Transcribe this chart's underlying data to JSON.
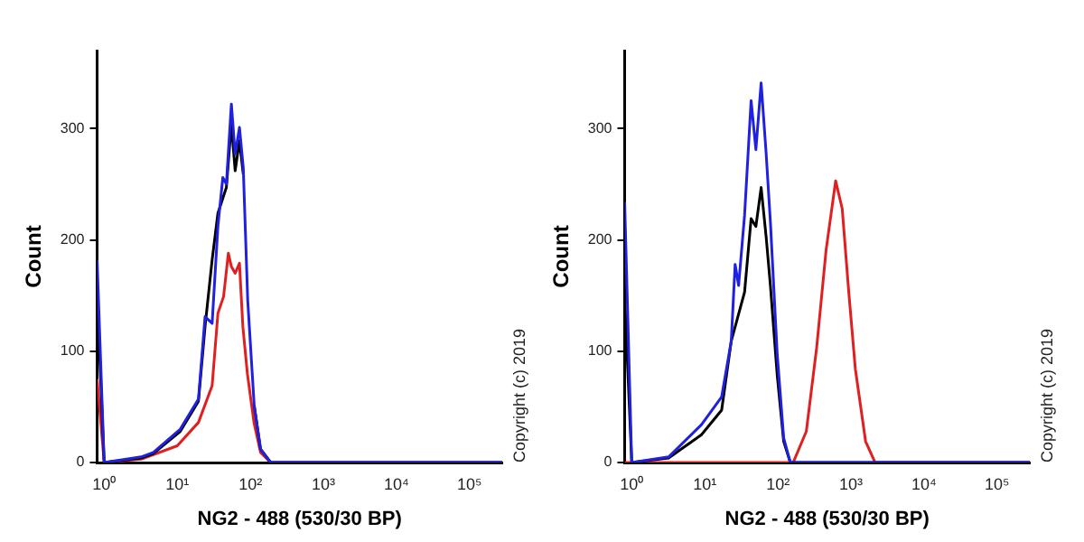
{
  "chart_data": [
    {
      "type": "line",
      "xlabel": "NG2 - 488 (530/30 BP)",
      "ylabel": "Count",
      "log": "x",
      "xlim": [
        0.8,
        280000
      ],
      "xticks": [
        {
          "value": 1,
          "label": "10⁰"
        },
        {
          "value": 10,
          "label": "10¹"
        },
        {
          "value": 100,
          "label": "10²"
        },
        {
          "value": 1000,
          "label": "10³"
        },
        {
          "value": 10000,
          "label": "10⁴"
        },
        {
          "value": 100000,
          "label": "10⁵"
        }
      ],
      "ylim": [
        0,
        370
      ],
      "yticks": [
        0,
        100,
        200,
        300
      ],
      "annotations": [
        "Copyright (c) 2019"
      ],
      "series": [
        {
          "color": "#2020e0",
          "x": [
            0.8,
            1,
            3.2,
            4.7,
            11,
            19.5,
            24,
            30,
            36,
            42,
            47,
            55,
            62,
            71,
            80,
            92,
            113,
            138,
            190,
            280000
          ],
          "values": [
            182,
            0,
            5,
            9,
            30,
            57,
            131,
            125,
            212,
            256,
            250,
            322,
            277,
            301,
            265,
            146,
            51,
            12,
            0,
            0
          ]
        },
        {
          "color": "#000000",
          "x": [
            0.8,
            1,
            3.2,
            4.7,
            11,
            19.5,
            24,
            30,
            36,
            47,
            55,
            62,
            71,
            80,
            92,
            113,
            138,
            190,
            280000
          ],
          "values": [
            150,
            0,
            4,
            8,
            28,
            55,
            122,
            182,
            224,
            247,
            304,
            262,
            289,
            259,
            null,
            51,
            12,
            0,
            0
          ]
        },
        {
          "color": "#e02020",
          "x": [
            0.8,
            1,
            3.2,
            10,
            19.5,
            30,
            36,
            43,
            50,
            55,
            62,
            71,
            79,
            91,
            112,
            138,
            190,
            280000
          ],
          "values": [
            75,
            0,
            3,
            15,
            36,
            69,
            134,
            149,
            188,
            176,
            170,
            179,
            122,
            80,
            36,
            9,
            0,
            0
          ]
        }
      ]
    },
    {
      "type": "line",
      "xlabel": "NG2 - 488 (530/30 BP)",
      "ylabel": "Count",
      "log": "x",
      "xlim": [
        0.8,
        280000
      ],
      "xticks": [
        {
          "value": 1,
          "label": "10⁰"
        },
        {
          "value": 10,
          "label": "10¹"
        },
        {
          "value": 100,
          "label": "10²"
        },
        {
          "value": 1000,
          "label": "10³"
        },
        {
          "value": 10000,
          "label": "10⁴"
        },
        {
          "value": 100000,
          "label": "10⁵"
        }
      ],
      "ylim": [
        0,
        370
      ],
      "yticks": [
        0,
        100,
        200,
        300
      ],
      "annotations": [
        "Copyright (c) 2019"
      ],
      "series": [
        {
          "color": "#2020e0",
          "x": [
            0.8,
            1,
            3.2,
            9,
            17,
            23,
            26,
            29,
            35,
            43,
            50,
            59,
            69,
            79,
            98,
            120,
            148,
            280000
          ],
          "values": [
            234,
            0,
            5,
            34,
            59,
            109,
            178,
            159,
            222,
            325,
            281,
            341,
            278,
            216,
            97,
            22,
            0,
            0
          ]
        },
        {
          "color": "#000000",
          "x": [
            0.8,
            1,
            3.2,
            9,
            17,
            23,
            35,
            43,
            50,
            59,
            69,
            79,
            98,
            120,
            148,
            280000
          ],
          "values": [
            150,
            0,
            4,
            25,
            47,
            109,
            153,
            219,
            212,
            247,
            203,
            159,
            78,
            19,
            0,
            0
          ]
        },
        {
          "color": "#e02020",
          "x": [
            0.8,
            162,
            245,
            339,
            457,
            617,
            759,
            933,
            1148,
            1585,
            2138,
            280000
          ],
          "values": [
            0,
            0,
            28,
            103,
            191,
            253,
            228,
            153,
            84,
            19,
            0,
            0
          ]
        }
      ]
    }
  ]
}
